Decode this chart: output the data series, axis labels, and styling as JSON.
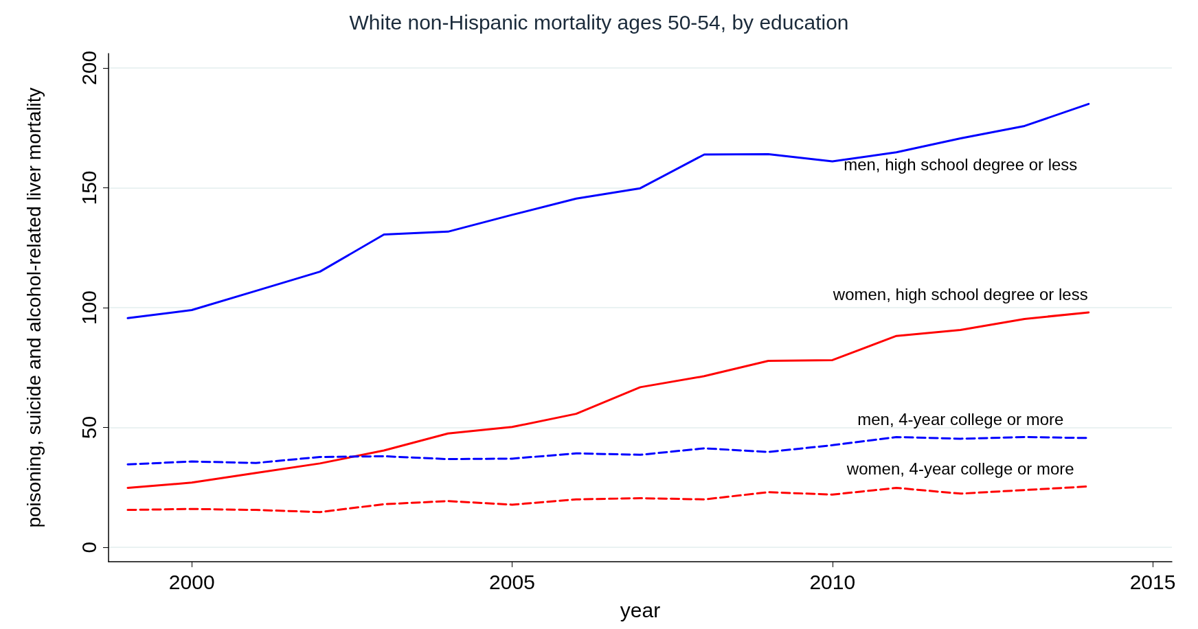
{
  "chart_data": {
    "type": "line",
    "title": "White non-Hispanic mortality ages 50-54, by education",
    "xlabel": "year",
    "ylabel": "poisoning, suicide and alcohol-related liver mortality",
    "x": [
      1999,
      2000,
      2001,
      2002,
      2003,
      2004,
      2005,
      2006,
      2007,
      2008,
      2009,
      2010,
      2011,
      2012,
      2013,
      2014
    ],
    "series": [
      {
        "name": "men, high school degree or less",
        "color": "#0000ff",
        "line_style": "solid",
        "values": [
          95.6,
          99,
          107,
          115,
          130.5,
          131.7,
          138.7,
          145.5,
          149.8,
          163.9,
          164,
          161,
          164.8,
          170.6,
          175.8,
          185
        ]
      },
      {
        "name": "women, high school degree or less",
        "color": "#ff0000",
        "line_style": "solid",
        "values": [
          24.8,
          27,
          31,
          35,
          40.4,
          47.5,
          50.2,
          55.7,
          66.8,
          71.4,
          77.8,
          78.1,
          88.2,
          90.7,
          95.3,
          98
        ]
      },
      {
        "name": "men, 4-year college or more",
        "color": "#0000ff",
        "line_style": "dashed",
        "values": [
          34.6,
          35.8,
          35.2,
          37.7,
          38,
          36.8,
          37,
          39.2,
          38.6,
          41.3,
          39.8,
          42.6,
          46,
          45.3,
          46,
          45.6
        ]
      },
      {
        "name": "women, 4-year college or more",
        "color": "#ff0000",
        "line_style": "dashed",
        "values": [
          15.6,
          16,
          15.6,
          14.7,
          18,
          19.3,
          17.8,
          20,
          20.5,
          20,
          23,
          22,
          24.8,
          22.4,
          23.9,
          25.4
        ]
      }
    ],
    "xlim": [
      1998.7,
      2015.3
    ],
    "xticks": [
      2000,
      2005,
      2010,
      2015
    ],
    "ylim": [
      -6,
      206
    ],
    "yticks": [
      0,
      50,
      100,
      150,
      200
    ],
    "grid": "y",
    "marker": "none"
  }
}
